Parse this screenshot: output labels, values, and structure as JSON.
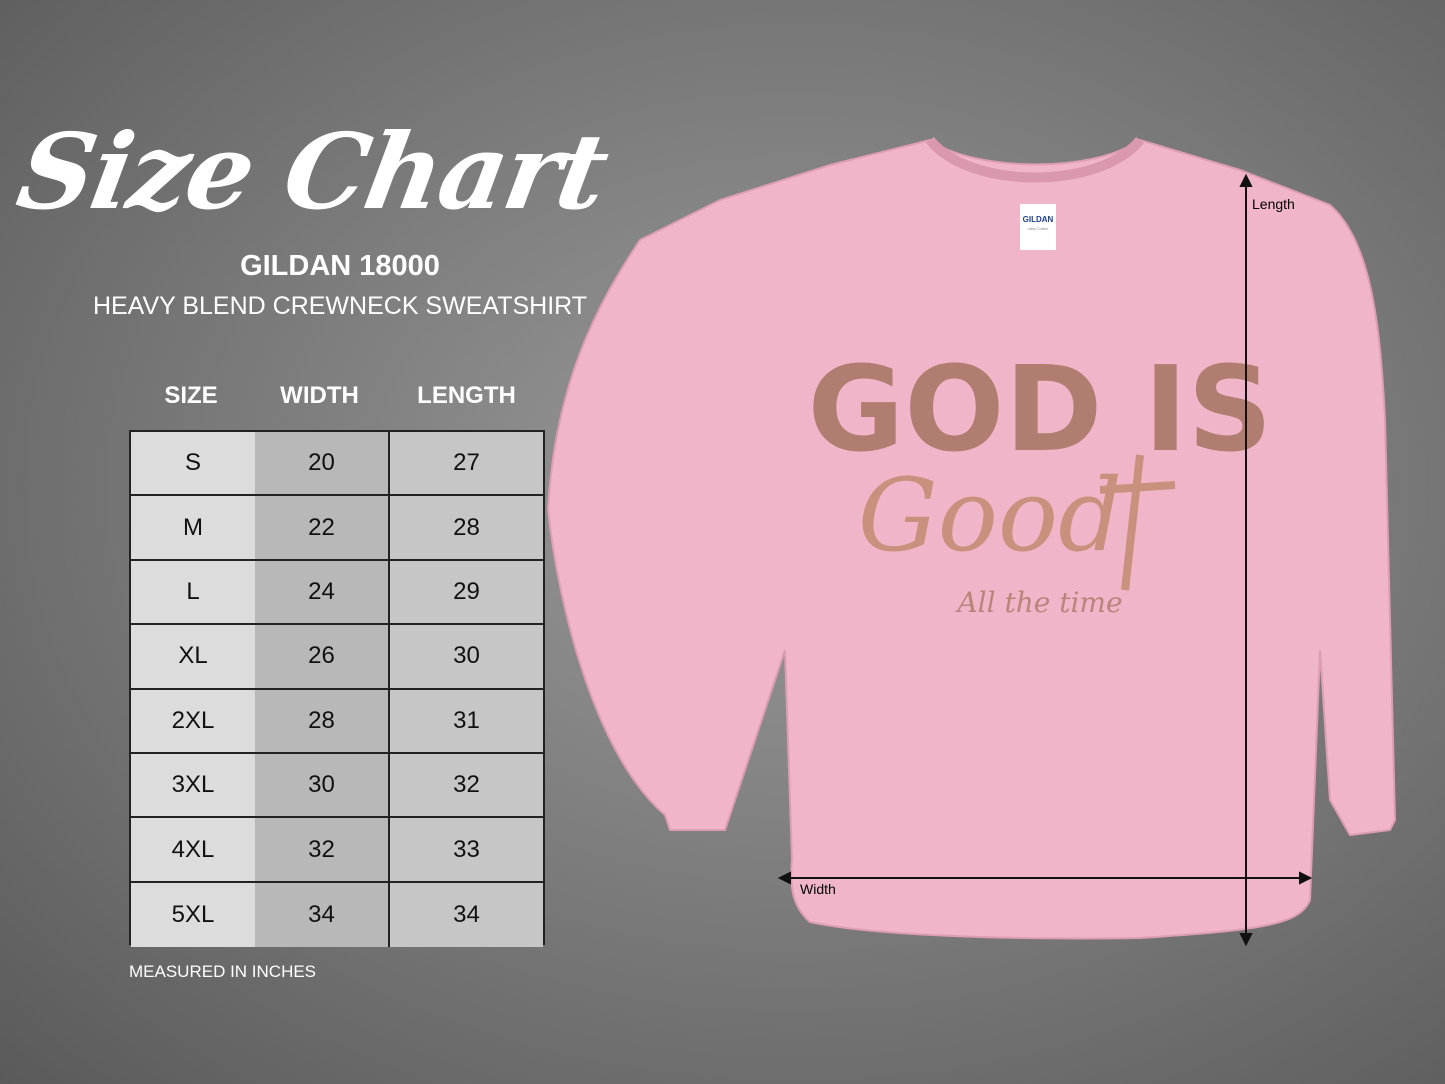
{
  "title": "Size Chart",
  "brand": "GILDAN 18000",
  "product": "HEAVY BLEND CREWNECK SWEATSHIRT",
  "table": {
    "headers": [
      "SIZE",
      "WIDTH",
      "LENGTH"
    ],
    "rows": [
      [
        "S",
        "20",
        "27"
      ],
      [
        "M",
        "22",
        "28"
      ],
      [
        "L",
        "24",
        "29"
      ],
      [
        "XL",
        "26",
        "30"
      ],
      [
        "2XL",
        "28",
        "31"
      ],
      [
        "3XL",
        "30",
        "32"
      ],
      [
        "4XL",
        "32",
        "33"
      ],
      [
        "5XL",
        "34",
        "34"
      ]
    ]
  },
  "note": "MEASURED IN INCHES",
  "shirt": {
    "color": "#f0b5c8",
    "tag_brand": "GILDAN",
    "tag_sub": "ultra Cotton",
    "print_line1": "GOD IS",
    "print_line2": "Good",
    "print_line3": "All the time",
    "length_label": "Length",
    "width_label": "Width"
  }
}
